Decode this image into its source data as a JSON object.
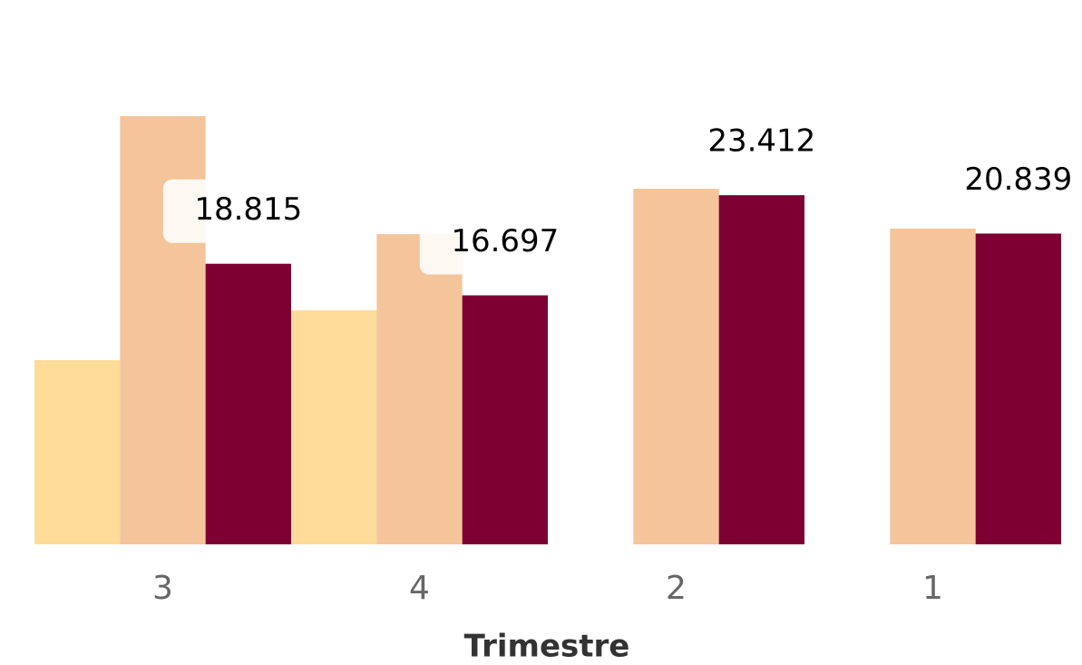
{
  "chart_data": {
    "type": "bar",
    "x_label": "Trimestre",
    "categories": [
      "3",
      "4",
      "2",
      "1"
    ],
    "series": [
      {
        "color": "#FDDB98",
        "values": [
          12.35,
          15.69,
          null,
          null
        ]
      },
      {
        "color": "#F4C59A",
        "values": [
          28.71,
          20.8,
          23.84,
          21.17
        ]
      },
      {
        "color": "#7E0033",
        "values": [
          18.815,
          16.697,
          23.412,
          20.839
        ],
        "data_labels": true
      }
    ],
    "ylim": [
      0,
      36.5
    ]
  }
}
